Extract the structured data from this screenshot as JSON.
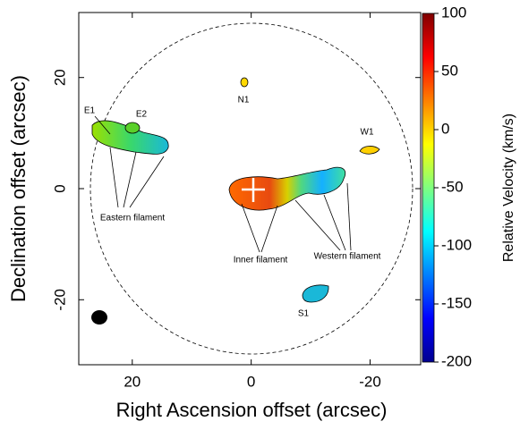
{
  "chart_data": {
    "type": "velocity-map",
    "x_label": "Right Ascension offset (arcsec)",
    "y_label": "Declination offset (arcsec)",
    "xlim": [
      29,
      -28.5
    ],
    "xticks": [
      20,
      0,
      -20
    ],
    "ylim": [
      -31.7,
      31.7
    ],
    "yticks": [
      -20,
      0,
      20
    ],
    "colorbar": {
      "label": "Relative Velocity (km/s)",
      "lim": [
        -200,
        100
      ],
      "ticks": [
        100,
        50,
        0,
        -50,
        -100,
        -150,
        -200
      ]
    },
    "annotations": [
      "E1",
      "E2",
      "N1",
      "W1",
      "S1",
      "Eastern filament",
      "Inner filament",
      "Western filament"
    ]
  }
}
